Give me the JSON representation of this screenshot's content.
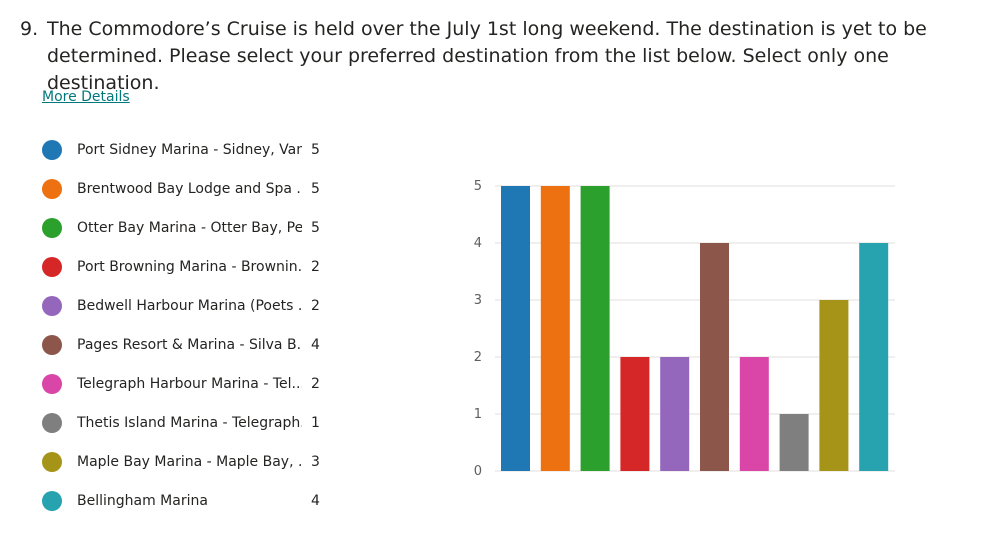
{
  "question": {
    "number": "9.",
    "text": "The Commodore’s Cruise is held over the July 1st long weekend. The destination is yet to be determined. Please select your preferred destination from the list below. Select only one destination."
  },
  "more_details_label": "More Details",
  "legend": [
    {
      "label": "Port Sidney Marina - Sidney, Van...",
      "count": "5",
      "color": "#1f77b4"
    },
    {
      "label": "Brentwood Bay Lodge and Spa ...",
      "count": "5",
      "color": "#ee7111"
    },
    {
      "label": "Otter Bay Marina - Otter Bay, Pe...",
      "count": "5",
      "color": "#2ca02c"
    },
    {
      "label": "Port Browning Marina - Brownin...",
      "count": "2",
      "color": "#d62728"
    },
    {
      "label": "Bedwell Harbour Marina (Poets ...",
      "count": "2",
      "color": "#9467bd"
    },
    {
      "label": "Pages Resort & Marina - Silva B...",
      "count": "4",
      "color": "#8c564b"
    },
    {
      "label": "Telegraph Harbour Marina - Tel...",
      "count": "2",
      "color": "#d946a8"
    },
    {
      "label": "Thetis Island Marina - Telegraph...",
      "count": "1",
      "color": "#7f7f7f"
    },
    {
      "label": "Maple Bay Marina - Maple Bay, ...",
      "count": "3",
      "color": "#a59417"
    },
    {
      "label": "Bellingham Marina",
      "count": "4",
      "color": "#27a3b0"
    }
  ],
  "chart_data": {
    "type": "bar",
    "values": [
      5,
      5,
      5,
      2,
      2,
      4,
      2,
      1,
      3,
      4
    ],
    "colors": [
      "#1f77b4",
      "#ee7111",
      "#2ca02c",
      "#d62728",
      "#9467bd",
      "#8c564b",
      "#d946a8",
      "#7f7f7f",
      "#a59417",
      "#27a3b0"
    ],
    "yticks": [
      "0",
      "1",
      "2",
      "3",
      "4",
      "5"
    ],
    "ylim": [
      0,
      5
    ],
    "grid": true
  }
}
